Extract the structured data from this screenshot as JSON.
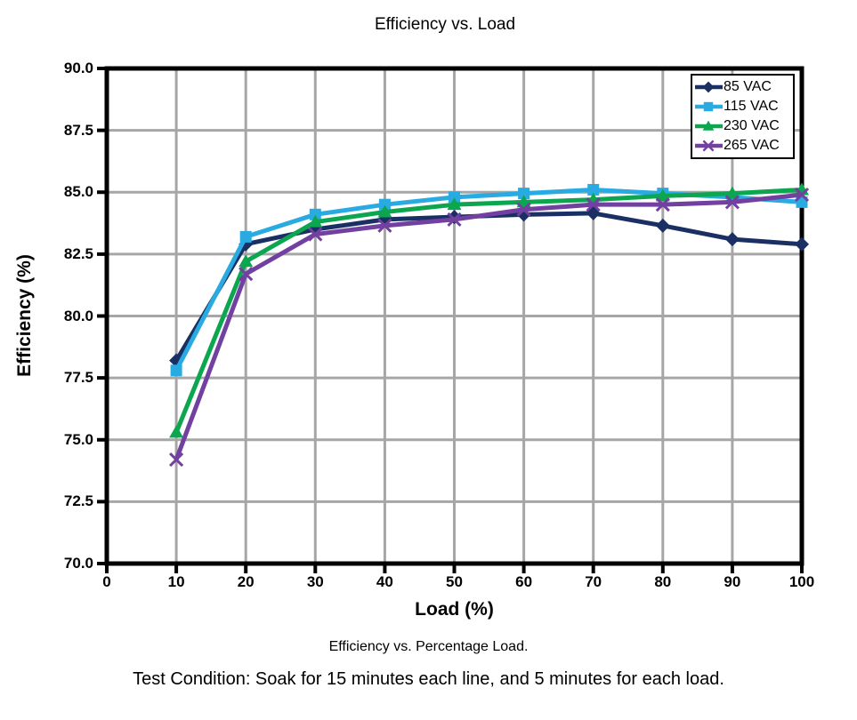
{
  "figure": {
    "title": "Efficiency vs. Load",
    "caption": "Efficiency vs. Percentage Load.",
    "footnote": "Test Condition: Soak for 15 minutes each line, and 5 minutes for each load."
  },
  "chart_data": {
    "type": "line",
    "title": "Efficiency vs. Load",
    "xlabel": "Load (%)",
    "ylabel": "Efficiency (%)",
    "xlim": [
      0,
      100
    ],
    "ylim": [
      70,
      90
    ],
    "grid": true,
    "legend_position": "top-right",
    "gridline_color": "#a6a6a6",
    "axis_color": "#000000",
    "background_color": "#ffffff",
    "xtick_values": [
      0,
      10,
      20,
      30,
      40,
      50,
      60,
      70,
      80,
      90,
      100
    ],
    "xtick_labels": [
      "0",
      "10",
      "20",
      "30",
      "40",
      "50",
      "60",
      "70",
      "80",
      "90",
      "100"
    ],
    "ytick_values": [
      70,
      72.5,
      75,
      77.5,
      80,
      82.5,
      85,
      87.5,
      90
    ],
    "ytick_labels": [
      "70.0",
      "72.5",
      "75.0",
      "77.5",
      "80.0",
      "82.5",
      "85.0",
      "87.5",
      "90.0"
    ],
    "x": [
      10,
      20,
      30,
      40,
      50,
      60,
      70,
      80,
      90,
      100
    ],
    "series": [
      {
        "name": "85 VAC",
        "color": "#1a2f63",
        "marker": "diamond",
        "values": [
          78.2,
          82.9,
          83.5,
          83.9,
          84.0,
          84.1,
          84.15,
          83.65,
          83.1,
          82.9
        ]
      },
      {
        "name": "115 VAC",
        "color": "#29abe2",
        "marker": "square",
        "values": [
          77.8,
          83.2,
          84.1,
          84.5,
          84.8,
          84.95,
          85.1,
          84.95,
          84.8,
          84.6
        ]
      },
      {
        "name": "230 VAC",
        "color": "#0ba64f",
        "marker": "triangle",
        "values": [
          75.3,
          82.2,
          83.8,
          84.2,
          84.5,
          84.6,
          84.7,
          84.85,
          84.95,
          85.1
        ]
      },
      {
        "name": "265 VAC",
        "color": "#7140a1",
        "marker": "x",
        "values": [
          74.2,
          81.7,
          83.3,
          83.65,
          83.9,
          84.3,
          84.5,
          84.5,
          84.6,
          84.9
        ]
      }
    ]
  }
}
